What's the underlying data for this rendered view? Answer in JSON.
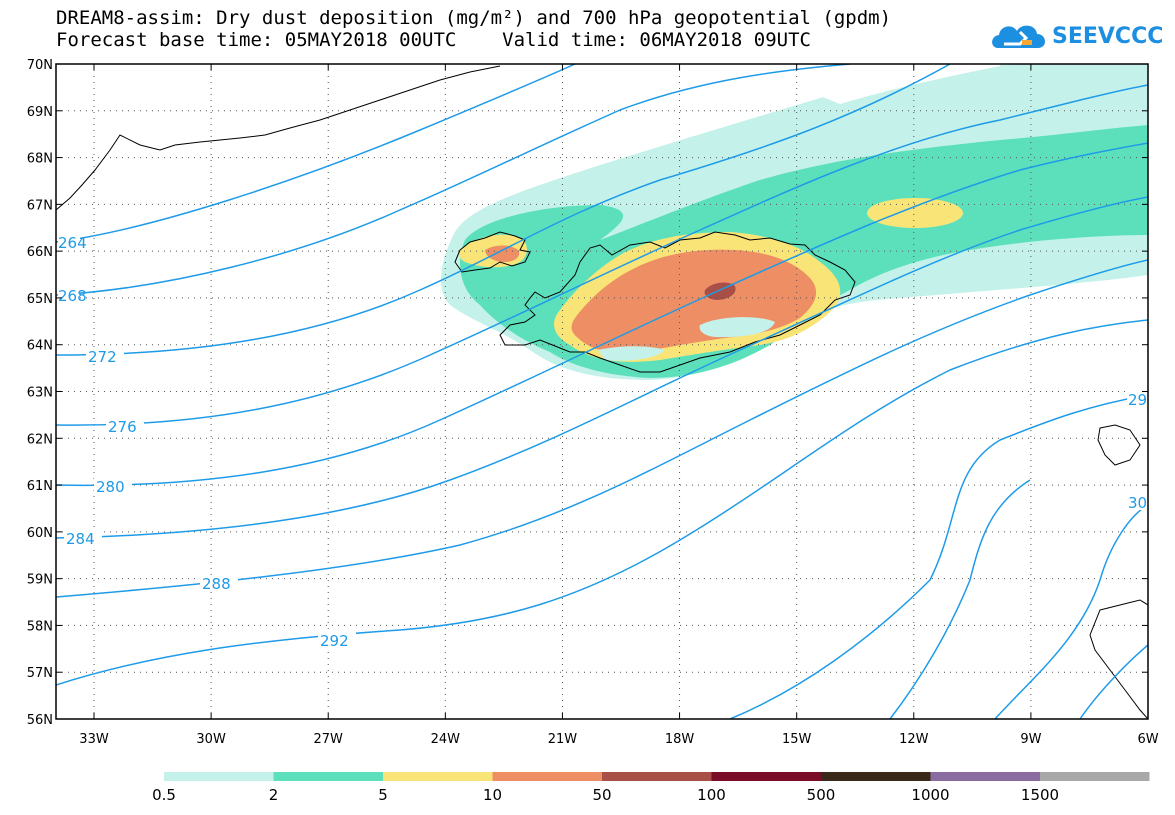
{
  "title": {
    "line1": "DREAM8-assim: Dry dust deposition (mg/m²) and 700 hPa geopotential (gpdm)",
    "line2_left": "Forecast base time: 05MAY2018 00UTC",
    "line2_right": "Valid time: 06MAY2018 09UTC"
  },
  "logo": {
    "text": "SEEVCCC",
    "color": "#1d8fe0"
  },
  "axes": {
    "lat_labels": [
      "70N",
      "69N",
      "68N",
      "67N",
      "66N",
      "65N",
      "64N",
      "63N",
      "62N",
      "61N",
      "60N",
      "59N",
      "58N",
      "57N",
      "56N"
    ],
    "lon_labels": [
      "33W",
      "30W",
      "27W",
      "24W",
      "21W",
      "18W",
      "15W",
      "12W",
      "9W",
      "6W"
    ]
  },
  "contours": {
    "color": "#1e9be8",
    "labels": [
      "264",
      "268",
      "272",
      "276",
      "280",
      "284",
      "288",
      "292",
      "29",
      "30"
    ]
  },
  "legend": {
    "labels": [
      "0.5",
      "2",
      "5",
      "10",
      "50",
      "100",
      "500",
      "1000",
      "1500"
    ],
    "colors": [
      "#c4f2ea",
      "#5ce0bb",
      "#f9e577",
      "#ee8e64",
      "#a84f48",
      "#7a0d27",
      "#3a2818",
      "#8a6ca0",
      "#a8a8a8"
    ]
  },
  "colors": {
    "dust_05": "#c4f2ea",
    "dust_2": "#5ce0bb",
    "dust_5": "#f9e577",
    "dust_10": "#ee8e64",
    "dust_50": "#a84f48"
  }
}
